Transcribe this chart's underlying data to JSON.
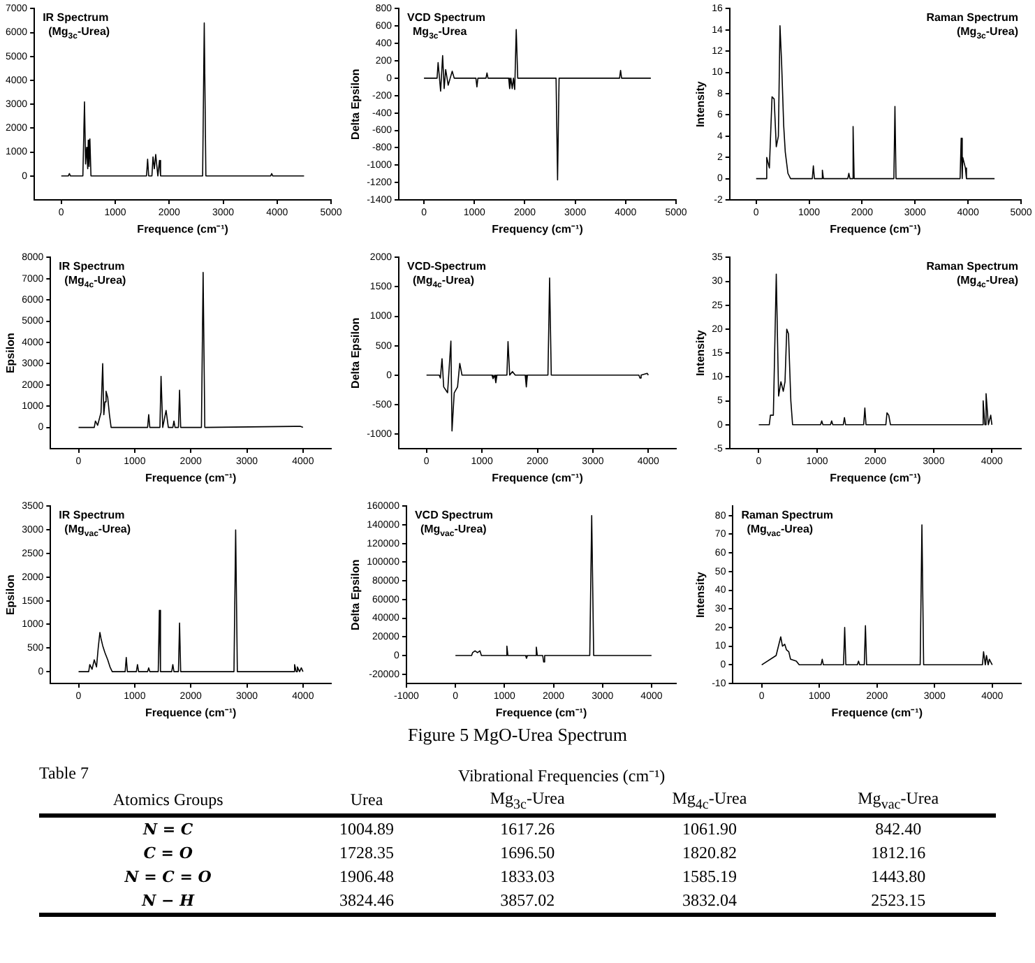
{
  "chart_data": [
    {
      "type": "line",
      "title": "IR Spectrum",
      "subtitle": "(Mg$_{3c}$-Urea)",
      "xlabel": "Frequence (cm⁻¹)",
      "xlim": [
        -500,
        5000
      ],
      "xticks": [
        0,
        1000,
        2000,
        3000,
        4000,
        5000
      ],
      "ylim": [
        -1000,
        7000
      ],
      "yticks": [
        0,
        1000,
        2000,
        3000,
        4000,
        5000,
        6000,
        7000
      ],
      "grid": false,
      "legend": false,
      "marker": "none",
      "x": [
        0,
        130,
        150,
        170,
        400,
        430,
        450,
        470,
        490,
        500,
        515,
        530,
        550,
        1580,
        1600,
        1620,
        1680,
        1700,
        1725,
        1750,
        1790,
        1820,
        1840,
        2620,
        2650,
        2680,
        3880,
        3900,
        3920,
        4500
      ],
      "series": [
        {
          "color": "#000000",
          "values": [
            0,
            0,
            100,
            0,
            0,
            3100,
            500,
            1200,
            300,
            1500,
            400,
            1550,
            0,
            0,
            700,
            0,
            0,
            800,
            300,
            900,
            0,
            650,
            0,
            0,
            6400,
            0,
            0,
            100,
            0,
            0
          ]
        }
      ]
    },
    {
      "type": "line",
      "title": "VCD Spectrum",
      "subtitle": "Mg$_{3c}$-Urea",
      "xlabel": "Frequency (cm⁻¹)",
      "ylabel": "Delta Epsilon",
      "xlim": [
        -500,
        5000
      ],
      "xticks": [
        0,
        1000,
        2000,
        3000,
        4000,
        5000
      ],
      "ylim": [
        -1400,
        800
      ],
      "yticks": [
        -1400,
        -1200,
        -1000,
        -800,
        -600,
        -400,
        -200,
        0,
        200,
        400,
        600,
        800
      ],
      "grid": false,
      "legend": false,
      "marker": "none",
      "x": [
        0,
        260,
        280,
        330,
        370,
        400,
        430,
        480,
        520,
        560,
        600,
        1030,
        1050,
        1070,
        1230,
        1250,
        1270,
        1680,
        1700,
        1725,
        1750,
        1775,
        1800,
        1830,
        1860,
        2620,
        2650,
        2680,
        3880,
        3900,
        3920,
        4500
      ],
      "series": [
        {
          "color": "#000000",
          "values": [
            0,
            0,
            180,
            -150,
            260,
            -120,
            100,
            -80,
            0,
            80,
            0,
            0,
            -100,
            0,
            0,
            60,
            0,
            0,
            -120,
            0,
            -120,
            0,
            -130,
            560,
            0,
            0,
            -1170,
            0,
            0,
            90,
            0,
            0
          ]
        }
      ]
    },
    {
      "type": "line",
      "title": "Raman Spectrum",
      "subtitle": "(Mg$_{3c}$-Urea)",
      "xlabel": "Frequence (cm⁻¹)",
      "ylabel": "Intensity",
      "xlim": [
        -500,
        5000
      ],
      "xticks": [
        0,
        1000,
        2000,
        3000,
        4000,
        5000
      ],
      "ylim": [
        -2,
        16
      ],
      "yticks": [
        -2,
        0,
        2,
        4,
        6,
        8,
        10,
        12,
        14,
        16
      ],
      "grid": false,
      "legend": false,
      "marker": "none",
      "x": [
        0,
        180,
        200,
        250,
        300,
        340,
        380,
        420,
        450,
        480,
        520,
        550,
        600,
        650,
        1060,
        1080,
        1100,
        1230,
        1250,
        1270,
        1730,
        1750,
        1770,
        1810,
        1830,
        1850,
        2600,
        2620,
        2640,
        3850,
        3870,
        3890,
        3900,
        3950,
        3970,
        4500
      ],
      "series": [
        {
          "color": "#000000",
          "values": [
            0,
            0,
            2,
            1,
            7.7,
            7.5,
            3,
            4,
            14.4,
            11,
            5,
            2.5,
            0.5,
            0,
            0,
            1.2,
            0,
            0,
            0.8,
            0,
            0,
            0.5,
            0,
            0,
            4.9,
            0,
            0,
            6.8,
            0,
            0,
            3.8,
            0,
            2,
            1,
            0,
            0
          ]
        }
      ]
    },
    {
      "type": "line",
      "title": "IR Spectrum",
      "subtitle": "(Mg$_{4c}$-Urea)",
      "xlabel": "Frequence (cm⁻¹)",
      "ylabel": "Epsilon",
      "xlim": [
        -500,
        4500
      ],
      "xticks": [
        0,
        1000,
        2000,
        3000,
        4000
      ],
      "ylim": [
        -1000,
        8000
      ],
      "yticks": [
        0,
        1000,
        2000,
        3000,
        4000,
        5000,
        6000,
        7000,
        8000
      ],
      "grid": false,
      "legend": false,
      "marker": "none",
      "x": [
        0,
        280,
        300,
        340,
        400,
        430,
        450,
        470,
        490,
        520,
        550,
        580,
        1230,
        1250,
        1270,
        1450,
        1470,
        1500,
        1560,
        1600,
        1680,
        1700,
        1720,
        1780,
        1800,
        1820,
        2190,
        2220,
        2250,
        3850,
        3950,
        4000
      ],
      "series": [
        {
          "color": "#000000",
          "values": [
            0,
            0,
            300,
            100,
            700,
            3000,
            600,
            1200,
            1700,
            1400,
            600,
            0,
            0,
            600,
            0,
            0,
            2400,
            0,
            800,
            0,
            0,
            300,
            0,
            0,
            1750,
            0,
            0,
            7300,
            0,
            50,
            50,
            0
          ]
        }
      ]
    },
    {
      "type": "line",
      "title": "VCD-Spectrum",
      "subtitle": "(Mg$_{4c}$-Urea)",
      "xlabel": "Frequence (cm⁻¹)",
      "ylabel": "Delta Epsilon",
      "xlim": [
        -500,
        4500
      ],
      "xticks": [
        0,
        1000,
        2000,
        3000,
        4000
      ],
      "ylim": [
        -1250,
        2000
      ],
      "yticks": [
        -1000,
        -500,
        0,
        500,
        1000,
        1500,
        2000
      ],
      "grid": false,
      "legend": false,
      "marker": "none",
      "x": [
        0,
        230,
        250,
        280,
        310,
        380,
        440,
        460,
        500,
        560,
        600,
        640,
        1180,
        1200,
        1230,
        1250,
        1270,
        1450,
        1470,
        1500,
        1550,
        1600,
        1780,
        1800,
        1820,
        2190,
        2220,
        2250,
        3830,
        3850,
        3870,
        3980,
        4000
      ],
      "series": [
        {
          "color": "#000000",
          "values": [
            0,
            0,
            -50,
            280,
            -200,
            -300,
            580,
            -950,
            -300,
            -200,
            200,
            0,
            0,
            -60,
            0,
            -130,
            0,
            0,
            570,
            0,
            60,
            0,
            0,
            -200,
            0,
            0,
            1650,
            0,
            0,
            -50,
            0,
            30,
            0
          ]
        }
      ]
    },
    {
      "type": "line",
      "title": "Raman Spectrum",
      "subtitle": "(Mg$_{4c}$-Urea)",
      "xlabel": "Frequence (cm⁻¹)",
      "ylabel": "Intensity",
      "xlim": [
        -500,
        4500
      ],
      "xticks": [
        0,
        1000,
        2000,
        3000,
        4000
      ],
      "ylim": [
        -5,
        35
      ],
      "yticks": [
        -5,
        0,
        5,
        10,
        15,
        20,
        25,
        30,
        35
      ],
      "grid": false,
      "legend": false,
      "marker": "none",
      "x": [
        0,
        180,
        200,
        250,
        300,
        340,
        380,
        420,
        450,
        480,
        510,
        550,
        580,
        1060,
        1080,
        1100,
        1230,
        1250,
        1270,
        1450,
        1470,
        1490,
        1800,
        1820,
        1840,
        2180,
        2200,
        2230,
        2260,
        3830,
        3850,
        3880,
        3900,
        3940,
        3980,
        4000
      ],
      "series": [
        {
          "color": "#000000",
          "values": [
            0,
            0,
            2,
            2,
            31.5,
            6,
            9,
            7,
            9,
            20,
            19,
            5,
            0,
            0,
            0.8,
            0,
            0,
            0.8,
            0,
            0,
            1.5,
            0,
            0,
            3.5,
            0,
            0,
            2.5,
            2,
            0,
            0,
            5,
            0,
            6.5,
            0,
            2,
            0
          ]
        }
      ]
    },
    {
      "type": "line",
      "title": "IR Spectrum",
      "subtitle": "(Mg$_{vac}$-Urea)",
      "xlabel": "Frequence (cm⁻¹)",
      "ylabel": "Epsilon",
      "xlim": [
        -500,
        4500
      ],
      "xticks": [
        0,
        1000,
        2000,
        3000,
        4000
      ],
      "ylim": [
        -250,
        3500
      ],
      "yticks": [
        0,
        500,
        1000,
        1500,
        2000,
        2500,
        3000,
        3500
      ],
      "grid": false,
      "legend": false,
      "marker": "none",
      "x": [
        0,
        180,
        200,
        240,
        280,
        320,
        350,
        380,
        400,
        430,
        470,
        520,
        560,
        600,
        830,
        850,
        870,
        1030,
        1050,
        1070,
        1230,
        1250,
        1270,
        1420,
        1440,
        1460,
        1660,
        1680,
        1700,
        1780,
        1800,
        1820,
        2770,
        2800,
        2830,
        3830,
        3850,
        3880,
        3900,
        3940,
        3970,
        4000
      ],
      "series": [
        {
          "color": "#000000",
          "values": [
            0,
            0,
            150,
            50,
            250,
            100,
            500,
            830,
            700,
            550,
            400,
            250,
            100,
            0,
            0,
            300,
            0,
            0,
            150,
            0,
            0,
            80,
            0,
            0,
            1300,
            0,
            0,
            150,
            0,
            0,
            1030,
            0,
            0,
            3000,
            0,
            0,
            150,
            0,
            100,
            0,
            80,
            0
          ]
        }
      ]
    },
    {
      "type": "line",
      "title": "VCD Spectrum",
      "subtitle": "(Mg$_{vac}$-Urea)",
      "xlabel": "Frequence (cm⁻¹)",
      "ylabel": "Delta Epsilon",
      "xlim": [
        -1000,
        4500
      ],
      "xticks": [
        -1000,
        0,
        1000,
        2000,
        3000,
        4000
      ],
      "ylim": [
        -30000,
        160000
      ],
      "yticks": [
        -20000,
        0,
        20000,
        40000,
        60000,
        80000,
        100000,
        120000,
        140000,
        160000
      ],
      "grid": false,
      "legend": false,
      "marker": "none",
      "x": [
        0,
        330,
        350,
        400,
        450,
        500,
        530,
        1030,
        1050,
        1070,
        1430,
        1450,
        1470,
        1630,
        1650,
        1670,
        1780,
        1800,
        1820,
        2740,
        2780,
        2820,
        4000
      ],
      "series": [
        {
          "color": "#000000",
          "values": [
            0,
            0,
            3000,
            5000,
            3000,
            5000,
            0,
            0,
            10000,
            0,
            0,
            -3000,
            0,
            0,
            9000,
            0,
            0,
            -7000,
            0,
            0,
            150000,
            0,
            0
          ]
        }
      ]
    },
    {
      "type": "line",
      "title": "Raman Spectrum",
      "subtitle": "(Mg$_{vac}$-Urea)",
      "xlabel": "Frequence (cm⁻¹)",
      "ylabel": "Intensity",
      "xlim": [
        -500,
        4500
      ],
      "xticks": [
        0,
        1000,
        2000,
        3000,
        4000
      ],
      "ylim": [
        -10,
        85
      ],
      "yticks": [
        -10,
        0,
        10,
        20,
        30,
        40,
        50,
        60,
        70,
        80
      ],
      "grid": false,
      "legend": false,
      "marker": "none",
      "x": [
        0,
        250,
        330,
        360,
        400,
        430,
        470,
        500,
        600,
        650,
        1030,
        1050,
        1070,
        1420,
        1440,
        1460,
        1660,
        1680,
        1700,
        1780,
        1800,
        1820,
        2750,
        2780,
        2810,
        3830,
        3850,
        3880,
        3900,
        3930,
        3950,
        4000
      ],
      "series": [
        {
          "color": "#000000",
          "values": [
            0,
            5,
            15,
            10,
            11,
            8,
            7,
            3,
            2,
            0,
            0,
            3,
            0,
            0,
            20,
            0,
            0,
            2,
            0,
            0,
            21,
            0,
            0,
            75,
            0,
            0,
            7,
            0,
            5,
            0,
            3,
            0
          ]
        }
      ]
    },
    {
      "type": "other",
      "annotations": [
        "Figure 5 MgO-Urea Spectrum"
      ],
      "title": "Table 7",
      "subtitle": "Vibrational Frequencies (cm⁻¹)",
      "categories": [
        "Atomics Groups",
        "Urea",
        "Mg$_{3c}$-Urea",
        "Mg$_{4c}$-Urea",
        "Mg$_{vac}$-Urea"
      ],
      "y_categories": [
        "N = C",
        "C = O",
        "N = C = O",
        "N − H"
      ],
      "cell_labels": [
        [
          "1004.89",
          "1617.26",
          "1061.90",
          "842.40"
        ],
        [
          "1728.35",
          "1696.50",
          "1820.82",
          "1812.16"
        ],
        [
          "1906.48",
          "1833.03",
          "1585.19",
          "1443.80"
        ],
        [
          "3824.46",
          "3857.02",
          "3832.04",
          "2523.15"
        ]
      ]
    }
  ]
}
